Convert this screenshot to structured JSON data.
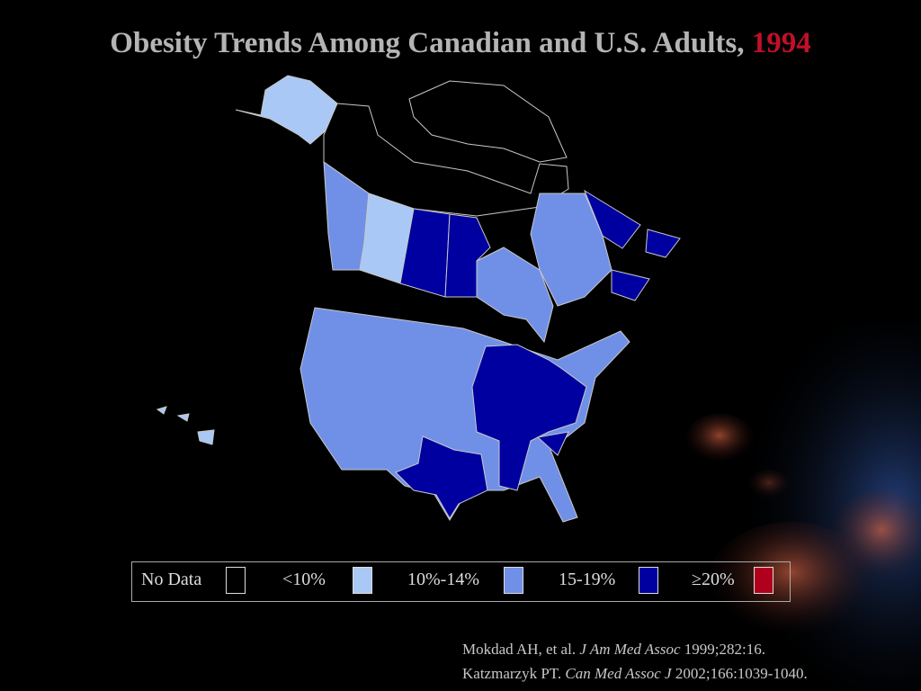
{
  "title": {
    "text": "Obesity Trends Among Canadian and U.S. Adults,",
    "year": "1994"
  },
  "legend": [
    {
      "label": "No Data",
      "color": "#000000"
    },
    {
      "label": "<10%",
      "color": "#a9c8f5"
    },
    {
      "label": "10%-14%",
      "color": "#7090e8"
    },
    {
      "label": "15-19%",
      "color": "#0000a0"
    },
    {
      "label": "≥20%",
      "color": "#b0001c"
    }
  ],
  "citations": [
    {
      "author": "Mokdad AH, et al.",
      "journal": "J Am Med Assoc",
      "details": "1999;282:16."
    },
    {
      "author": "Katzmarzyk PT.",
      "journal": "Can Med Assoc J",
      "details": "2002;166:1039-1040."
    }
  ]
}
